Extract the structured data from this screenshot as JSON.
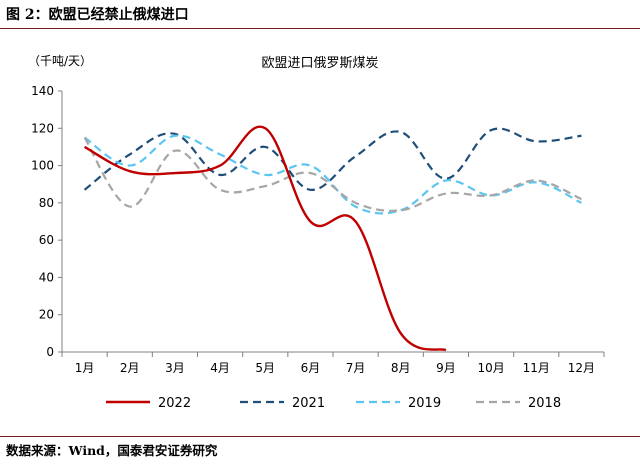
{
  "figure": {
    "title": "图 2：欧盟已经禁止俄煤进口",
    "source": "数据来源：Wind，国泰君安证券研究"
  },
  "chart_data": {
    "type": "line",
    "title": "欧盟进口俄罗斯煤炭",
    "unit_label": "（千吨/天）",
    "xlabel": "",
    "ylabel": "",
    "categories": [
      "1月",
      "2月",
      "3月",
      "4月",
      "5月",
      "6月",
      "7月",
      "8月",
      "9月",
      "10月",
      "11月",
      "12月"
    ],
    "yticks": [
      "0",
      "20",
      "40",
      "60",
      "80",
      "100",
      "120",
      "140"
    ],
    "ylim": [
      0,
      140
    ],
    "grid": false,
    "legend_position": "bottom",
    "series": [
      {
        "name": "2022",
        "color": "#c00000",
        "dash": "solid",
        "values": [
          110,
          97,
          96,
          100,
          120,
          70,
          70,
          10,
          1,
          null,
          null,
          null
        ]
      },
      {
        "name": "2021",
        "color": "#1f4e79",
        "dash": "dashed",
        "values": [
          87,
          106,
          117,
          95,
          110,
          87,
          105,
          118,
          93,
          119,
          113,
          116
        ]
      },
      {
        "name": "2019",
        "color": "#5bc5f2",
        "dash": "dashed",
        "values": [
          115,
          100,
          116,
          106,
          95,
          100,
          78,
          76,
          92,
          84,
          91,
          80
        ]
      },
      {
        "name": "2018",
        "color": "#a6a6a6",
        "dash": "dashed",
        "values": [
          115,
          78,
          108,
          87,
          89,
          96,
          80,
          76,
          85,
          84,
          92,
          82
        ]
      }
    ]
  }
}
